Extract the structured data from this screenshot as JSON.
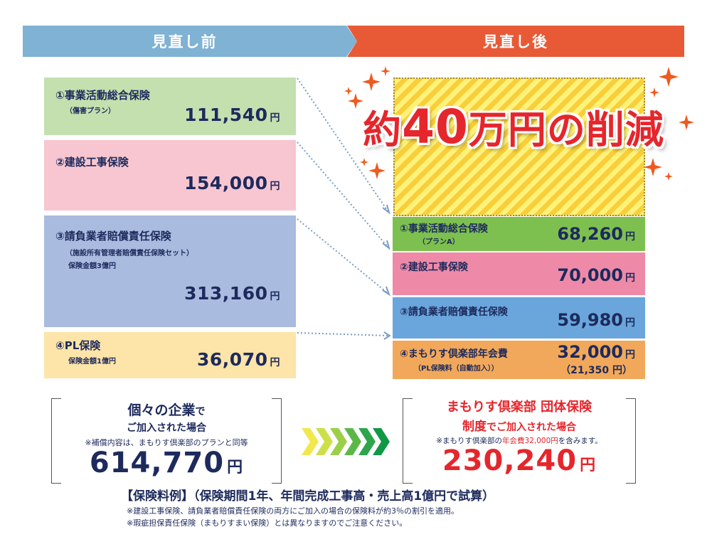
{
  "header": {
    "before": "見直し前",
    "after": "見直し後"
  },
  "before_items": [
    {
      "title": "①事業活動総合保険",
      "sub": "（傷害プラン）",
      "amount": "111,540",
      "yen": "円"
    },
    {
      "title": "②建設工事保険",
      "sub": "",
      "amount": "154,000",
      "yen": "円"
    },
    {
      "title": "③請負業者賠償責任保険",
      "sub": "（施設所有管理者賠償責任保険セット）",
      "sub2": "保険金額3億円",
      "amount": "313,160",
      "yen": "円"
    },
    {
      "title": "④PL保険",
      "sub": "保険金額1億円",
      "amount": "36,070",
      "yen": "円"
    }
  ],
  "reduction": {
    "prefix": "約",
    "number": "40",
    "suffix": "万円の削減"
  },
  "after_items": [
    {
      "title": "①事業活動総合保険",
      "sub": "（プランA）",
      "amount": "68,260",
      "yen": "円"
    },
    {
      "title": "②建設工事保険",
      "sub": "",
      "amount": "70,000",
      "yen": "円"
    },
    {
      "title": "③請負業者賠償責任保険",
      "sub": "",
      "amount": "59,980",
      "yen": "円"
    },
    {
      "title": "④まもりす倶楽部年会費",
      "sub": "（PL保険料（自動加入））",
      "amount": "32,000",
      "yen": "円",
      "sub_amount": "（21,350 円）"
    }
  ],
  "summary_before": {
    "line1_a": "個々の企業",
    "line1_b": "で",
    "line2": "ご加入された場合",
    "note": "※補償内容は、まもりす倶楽部のプランと同等",
    "total": "614,770",
    "yen": "円"
  },
  "summary_after": {
    "line1": "まもりす倶楽部 団体保険",
    "line2_a": "制度",
    "line2_b": "でご加入された場合",
    "note_a": "※まもりす倶楽部の",
    "note_b": "年会費32,000円",
    "note_c": "を含みます。",
    "total": "230,240",
    "yen": "円"
  },
  "footer": {
    "example": "【保険料例】（保険期間1年、年間完成工事高・売上高1億円で試算）",
    "note1": "※建設工事保険、請負業者賠償責任保険の両方にご加入の場合の保険料が約3％の割引を適用。",
    "note2": "※瑕疵担保責任保険（まもりすまい保険）とは異なりますのでご注意ください。"
  },
  "colors": {
    "before_header": "#7fb2d3",
    "after_header": "#e85a36",
    "accent_red": "#e5262c",
    "navy": "#1d2a5c",
    "box_green": "#c3e0ae",
    "box_pink": "#f7c6d0",
    "box_blue": "#a9bbdf",
    "box_yellow": "#fde4a8",
    "rbox_green": "#7dc04f",
    "rbox_pink": "#ee8aa8",
    "rbox_blue": "#6aa6db",
    "rbox_orange": "#f2a85a"
  }
}
